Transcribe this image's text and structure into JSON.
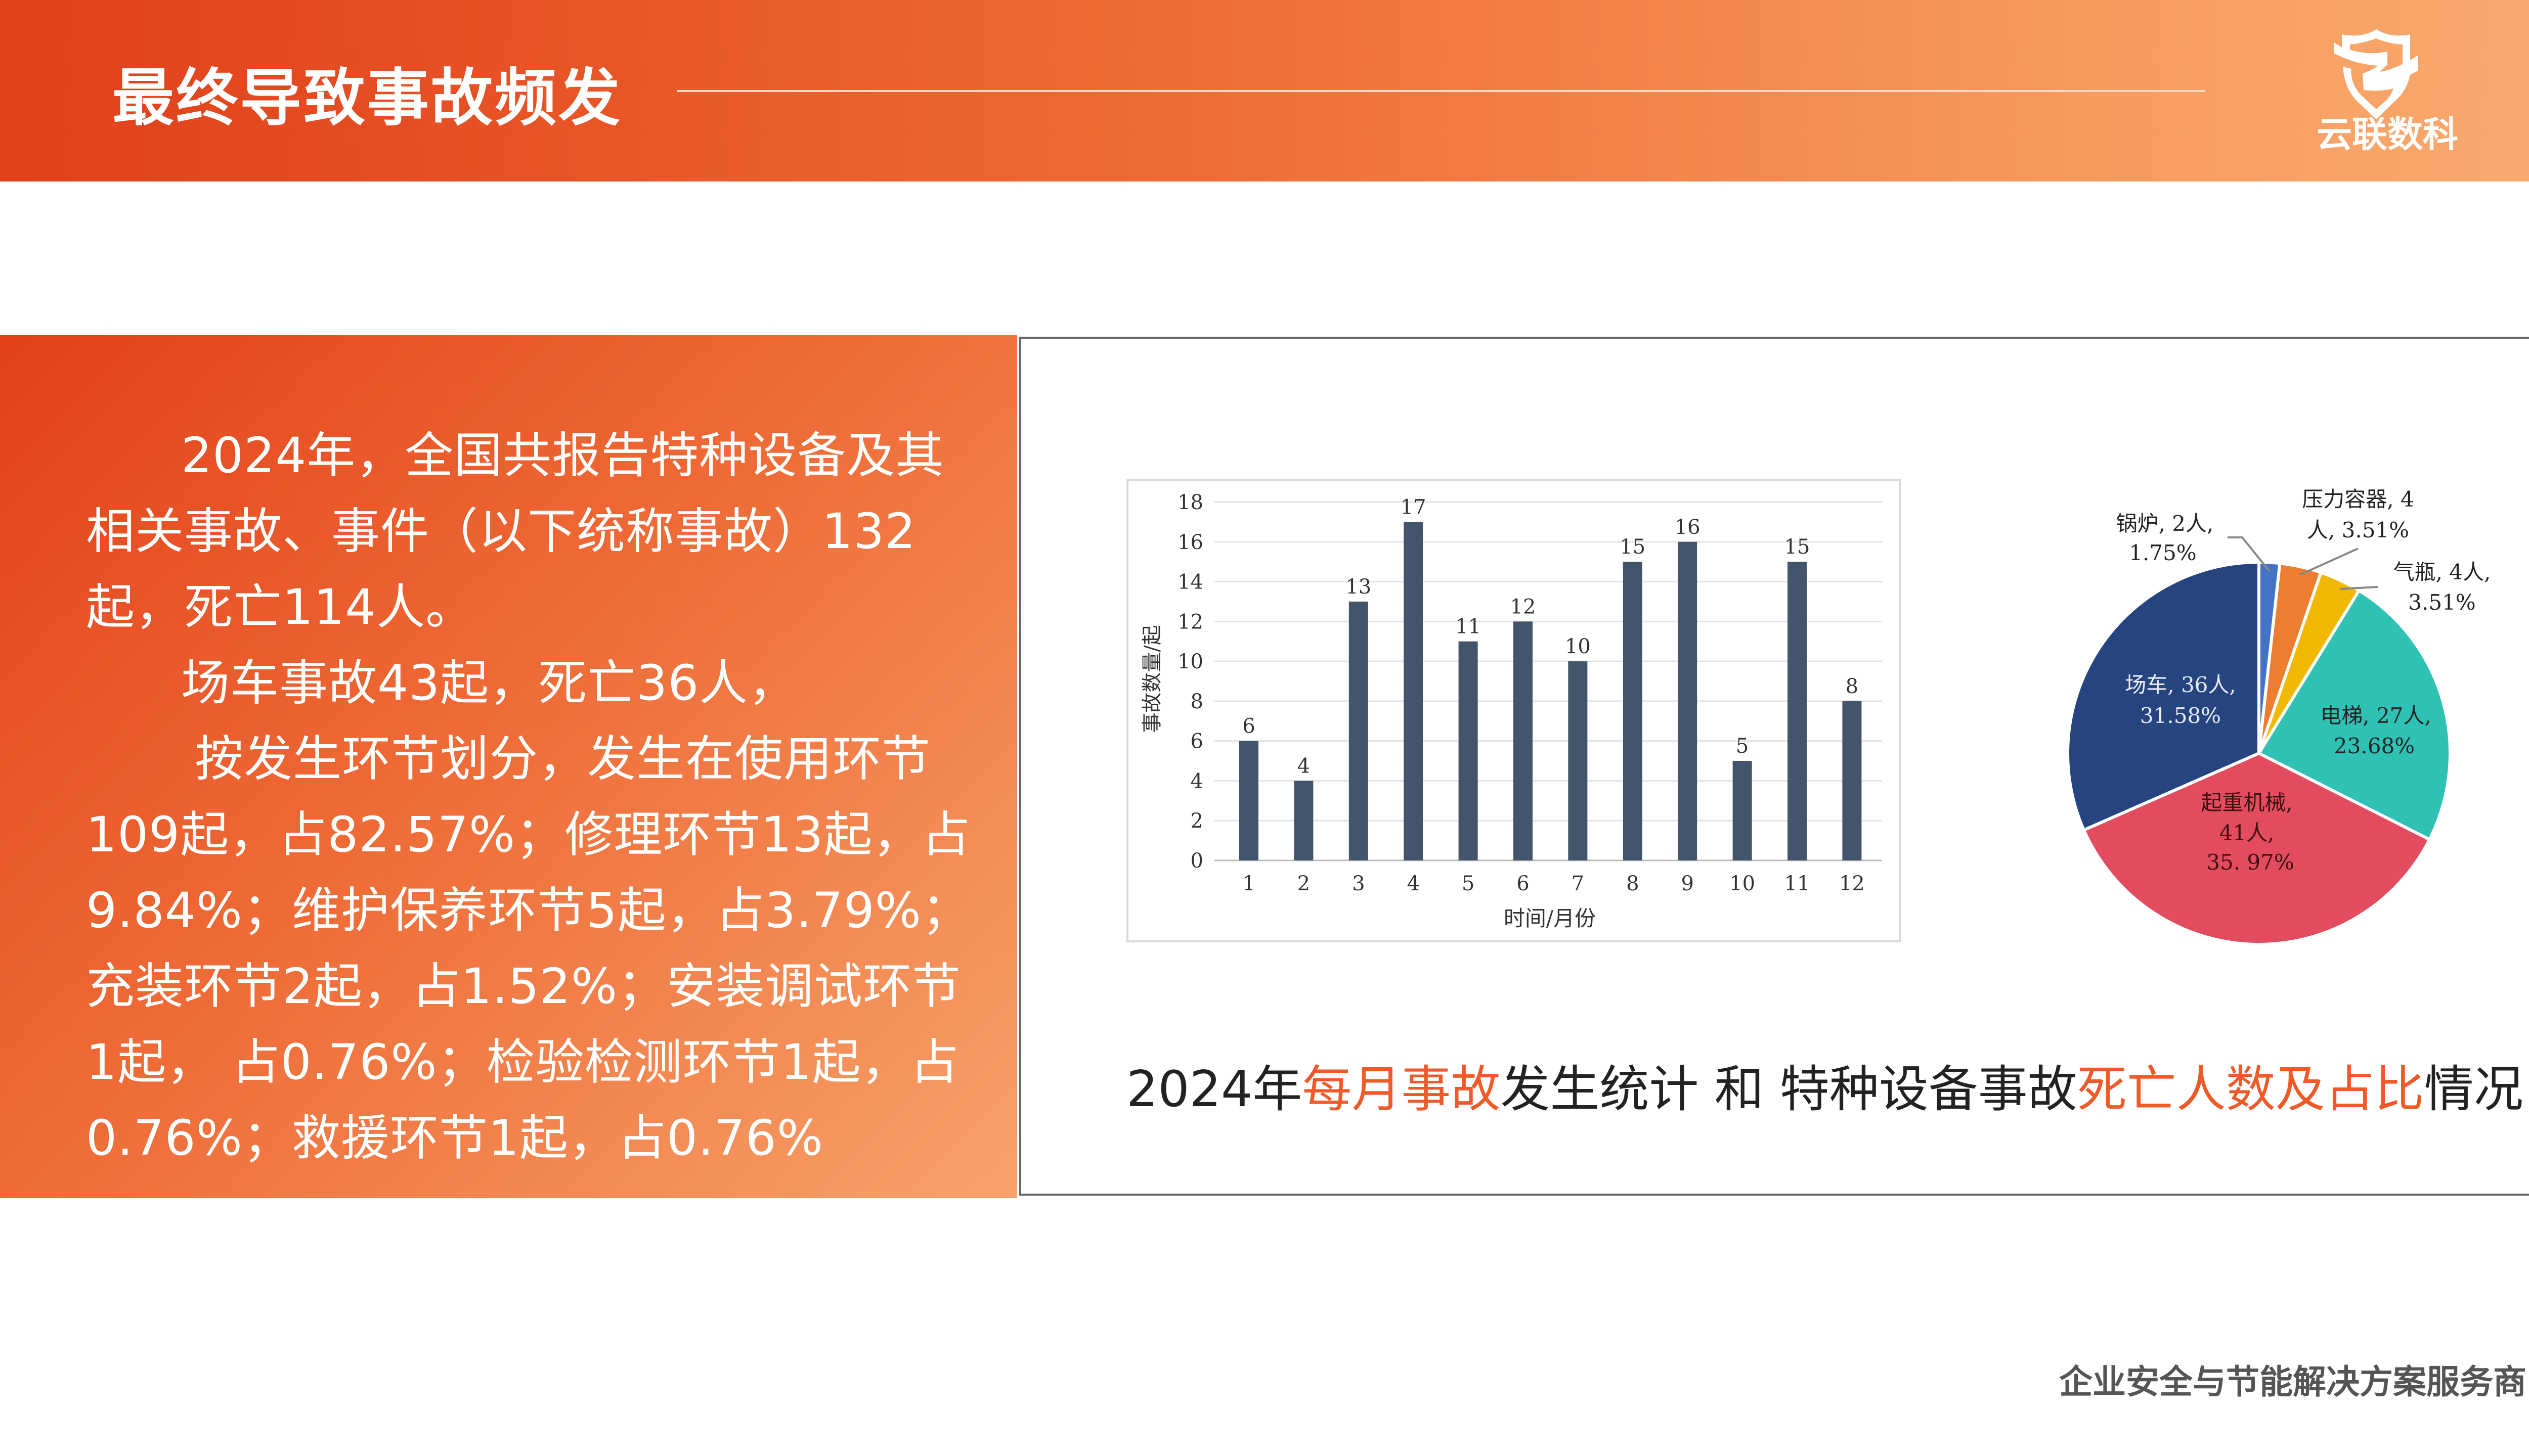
{
  "header": {
    "title": "最终导致事故频发",
    "logo_text": "云联数科"
  },
  "body_text": {
    "lines": [
      "2024年，全国共报告特种设备及其",
      "相关事故、事件（以下统称事故）132",
      "起，死亡114人。",
      "场车事故43起，死亡36人，",
      "按发生环节划分，发生在使用环节",
      "109起，占82.57%；修理环节13起，占",
      "9.84%；维护保养环节5起，占3.79%；",
      "充装环节2起，占1.52%；安装调试环节",
      "1起，  占0.76%；检验检测环节1起，占",
      "0.76%；救援环节1起，占0.76%"
    ]
  },
  "caption": {
    "part1": "2024年",
    "part2": "每月事故",
    "part3": "发生统计 和 特种设备事故",
    "part4": "死亡人数及占比",
    "part5": "情况"
  },
  "footer": {
    "tagline": "企业安全与节能解决方案服务商"
  },
  "colors": {
    "accent": "#f05a28",
    "bar": "#44546a"
  },
  "chart_data": [
    {
      "type": "bar",
      "title": "",
      "xlabel": "时间/月份",
      "ylabel": "事故数量/起",
      "categories": [
        "1",
        "2",
        "3",
        "4",
        "5",
        "6",
        "7",
        "8",
        "9",
        "10",
        "11",
        "12"
      ],
      "values": [
        6,
        4,
        13,
        17,
        11,
        12,
        10,
        15,
        16,
        5,
        15,
        8
      ],
      "ylim": [
        0,
        18
      ],
      "yticks": [
        0,
        2,
        4,
        6,
        8,
        10,
        12,
        14,
        16,
        18
      ],
      "grid": true
    },
    {
      "type": "pie",
      "slices": [
        {
          "name": "锅炉",
          "deaths": 2,
          "percent": 1.75,
          "label": [
            "锅炉, 2人,",
            "1.75%"
          ],
          "color": "#4472c4"
        },
        {
          "name": "压力容器",
          "deaths": 4,
          "percent": 3.51,
          "label": [
            "压力容器, 4",
            "人, 3.51%"
          ],
          "color": "#ed7d31"
        },
        {
          "name": "气瓶",
          "deaths": 4,
          "percent": 3.51,
          "label": [
            "气瓶, 4人,",
            "3.51%"
          ],
          "color": "#f0b800"
        },
        {
          "name": "电梯",
          "deaths": 27,
          "percent": 23.68,
          "label": [
            "电梯, 27人,",
            "23.68%"
          ],
          "color": "#2ec1b4"
        },
        {
          "name": "起重机械",
          "deaths": 41,
          "percent": 35.97,
          "label": [
            "起重机械,",
            "41人,",
            "35. 97%"
          ],
          "color": "#e34c5e"
        },
        {
          "name": "场车",
          "deaths": 36,
          "percent": 31.58,
          "label": [
            "场车, 36人,",
            "31.58%"
          ],
          "color": "#26447f"
        }
      ]
    }
  ]
}
